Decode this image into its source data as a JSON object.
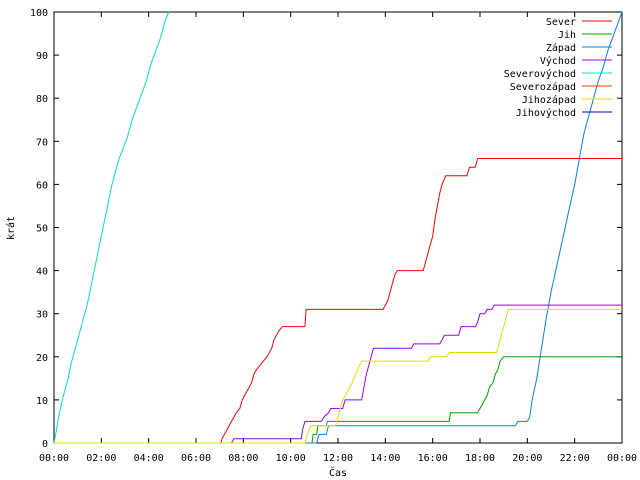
{
  "chart_data": {
    "type": "line",
    "title": "",
    "xlabel": "Čas",
    "ylabel": "krát",
    "x_unit": "hours",
    "xlim": [
      0,
      24
    ],
    "ylim": [
      0,
      100
    ],
    "x_ticks": [
      {
        "v": 0,
        "label": "00:00"
      },
      {
        "v": 2,
        "label": "02:00"
      },
      {
        "v": 4,
        "label": "04:00"
      },
      {
        "v": 6,
        "label": "06:00"
      },
      {
        "v": 8,
        "label": "08:00"
      },
      {
        "v": 10,
        "label": "10:00"
      },
      {
        "v": 12,
        "label": "12:00"
      },
      {
        "v": 14,
        "label": "14:00"
      },
      {
        "v": 16,
        "label": "16:00"
      },
      {
        "v": 18,
        "label": "18:00"
      },
      {
        "v": 20,
        "label": "20:00"
      },
      {
        "v": 22,
        "label": "22:00"
      },
      {
        "v": 24,
        "label": "00:00"
      }
    ],
    "y_ticks": [
      {
        "v": 0,
        "label": "0"
      },
      {
        "v": 10,
        "label": "10"
      },
      {
        "v": 20,
        "label": "20"
      },
      {
        "v": 30,
        "label": "30"
      },
      {
        "v": 40,
        "label": "40"
      },
      {
        "v": 50,
        "label": "50"
      },
      {
        "v": 60,
        "label": "60"
      },
      {
        "v": 70,
        "label": "70"
      },
      {
        "v": 80,
        "label": "80"
      },
      {
        "v": 90,
        "label": "90"
      },
      {
        "v": 100,
        "label": "100"
      }
    ],
    "grid": false,
    "legend_position": "top-right",
    "series": [
      {
        "name": "Sever",
        "color": "#ff0000",
        "points": [
          [
            0,
            0
          ],
          [
            7.05,
            0
          ],
          [
            7.1,
            1
          ],
          [
            7.2,
            2
          ],
          [
            7.3,
            3
          ],
          [
            7.4,
            4
          ],
          [
            7.5,
            5
          ],
          [
            7.6,
            6
          ],
          [
            7.7,
            7
          ],
          [
            7.85,
            8
          ],
          [
            7.95,
            10
          ],
          [
            8.05,
            11
          ],
          [
            8.15,
            12
          ],
          [
            8.25,
            13
          ],
          [
            8.35,
            14
          ],
          [
            8.45,
            16
          ],
          [
            8.55,
            17
          ],
          [
            8.7,
            18
          ],
          [
            8.85,
            19
          ],
          [
            9.0,
            20
          ],
          [
            9.1,
            21
          ],
          [
            9.2,
            22
          ],
          [
            9.3,
            24
          ],
          [
            9.4,
            25
          ],
          [
            9.5,
            26
          ],
          [
            9.65,
            27
          ],
          [
            10.6,
            27
          ],
          [
            10.65,
            31
          ],
          [
            13.9,
            31
          ],
          [
            14.0,
            32
          ],
          [
            14.1,
            33
          ],
          [
            14.2,
            35
          ],
          [
            14.3,
            37
          ],
          [
            14.4,
            39
          ],
          [
            14.5,
            40
          ],
          [
            15.6,
            40
          ],
          [
            15.7,
            42
          ],
          [
            15.85,
            45
          ],
          [
            16.0,
            48
          ],
          [
            16.1,
            52
          ],
          [
            16.2,
            55
          ],
          [
            16.3,
            58
          ],
          [
            16.4,
            60
          ],
          [
            16.55,
            62
          ],
          [
            17.45,
            62
          ],
          [
            17.55,
            64
          ],
          [
            17.8,
            64
          ],
          [
            17.9,
            66
          ],
          [
            24,
            66
          ]
        ]
      },
      {
        "name": "Jih",
        "color": "#00a000",
        "points": [
          [
            0,
            0
          ],
          [
            10.9,
            0
          ],
          [
            10.95,
            2
          ],
          [
            11.1,
            2
          ],
          [
            11.15,
            4
          ],
          [
            11.5,
            4
          ],
          [
            11.55,
            5
          ],
          [
            16.7,
            5
          ],
          [
            16.75,
            7
          ],
          [
            17.9,
            7
          ],
          [
            18.0,
            8
          ],
          [
            18.1,
            9
          ],
          [
            18.2,
            10
          ],
          [
            18.3,
            11
          ],
          [
            18.4,
            13
          ],
          [
            18.55,
            14
          ],
          [
            18.65,
            16
          ],
          [
            18.75,
            17
          ],
          [
            18.85,
            19
          ],
          [
            19.0,
            20
          ],
          [
            24,
            20
          ]
        ]
      },
      {
        "name": "Západ",
        "color": "#0080ff",
        "points": [
          [
            0,
            0
          ],
          [
            11.1,
            0
          ],
          [
            11.2,
            2
          ],
          [
            11.5,
            2
          ],
          [
            11.6,
            4
          ],
          [
            19.5,
            4
          ],
          [
            19.6,
            5
          ],
          [
            20.0,
            5
          ],
          [
            20.1,
            6
          ],
          [
            20.2,
            10
          ],
          [
            20.4,
            15
          ],
          [
            20.6,
            22
          ],
          [
            20.8,
            29
          ],
          [
            21.0,
            35
          ],
          [
            21.2,
            40
          ],
          [
            21.4,
            45
          ],
          [
            21.6,
            50
          ],
          [
            21.8,
            55
          ],
          [
            22.0,
            60
          ],
          [
            22.2,
            66
          ],
          [
            22.4,
            72
          ],
          [
            22.6,
            76
          ],
          [
            22.8,
            80
          ],
          [
            23.0,
            84
          ],
          [
            23.2,
            87
          ],
          [
            23.4,
            91
          ],
          [
            23.6,
            94
          ],
          [
            23.8,
            97
          ],
          [
            24,
            100
          ]
        ]
      },
      {
        "name": "Východ",
        "color": "#a000ff",
        "points": [
          [
            0,
            0
          ],
          [
            7.5,
            0
          ],
          [
            7.6,
            1
          ],
          [
            10.45,
            1
          ],
          [
            10.5,
            3
          ],
          [
            10.6,
            5
          ],
          [
            11.3,
            5
          ],
          [
            11.4,
            6
          ],
          [
            11.6,
            7
          ],
          [
            11.7,
            8
          ],
          [
            12.2,
            8
          ],
          [
            12.3,
            10
          ],
          [
            13.0,
            10
          ],
          [
            13.1,
            13
          ],
          [
            13.2,
            16
          ],
          [
            13.3,
            18
          ],
          [
            13.4,
            20
          ],
          [
            13.5,
            22
          ],
          [
            15.1,
            22
          ],
          [
            15.2,
            23
          ],
          [
            16.3,
            23
          ],
          [
            16.4,
            24
          ],
          [
            16.5,
            25
          ],
          [
            17.1,
            25
          ],
          [
            17.2,
            27
          ],
          [
            17.8,
            27
          ],
          [
            17.9,
            28
          ],
          [
            18.0,
            30
          ],
          [
            18.2,
            30
          ],
          [
            18.3,
            31
          ],
          [
            18.5,
            31
          ],
          [
            18.6,
            32
          ],
          [
            24,
            32
          ]
        ]
      },
      {
        "name": "Severovýchod",
        "color": "#00e0e0",
        "points": [
          [
            0,
            0
          ],
          [
            0.1,
            3
          ],
          [
            0.2,
            6
          ],
          [
            0.35,
            10
          ],
          [
            0.5,
            13
          ],
          [
            0.6,
            15
          ],
          [
            0.7,
            18
          ],
          [
            0.85,
            21
          ],
          [
            1.0,
            24
          ],
          [
            1.2,
            28
          ],
          [
            1.4,
            32
          ],
          [
            1.55,
            36
          ],
          [
            1.7,
            40
          ],
          [
            1.85,
            44
          ],
          [
            2.0,
            48
          ],
          [
            2.15,
            52
          ],
          [
            2.3,
            56
          ],
          [
            2.45,
            60
          ],
          [
            2.6,
            63
          ],
          [
            2.75,
            66
          ],
          [
            2.9,
            68
          ],
          [
            3.1,
            71
          ],
          [
            3.3,
            75
          ],
          [
            3.5,
            78
          ],
          [
            3.7,
            81
          ],
          [
            3.9,
            84
          ],
          [
            4.1,
            88
          ],
          [
            4.3,
            91
          ],
          [
            4.5,
            94
          ],
          [
            4.7,
            98
          ],
          [
            4.85,
            100
          ]
        ]
      },
      {
        "name": "Severozápad",
        "color": "#ff4000",
        "points": []
      },
      {
        "name": "Jihozápad",
        "color": "#e0e000",
        "points": [
          [
            0,
            0
          ],
          [
            10.6,
            0
          ],
          [
            10.7,
            2
          ],
          [
            10.85,
            4
          ],
          [
            11.9,
            4
          ],
          [
            12.0,
            6
          ],
          [
            12.1,
            8
          ],
          [
            12.2,
            10
          ],
          [
            12.4,
            12
          ],
          [
            12.6,
            14
          ],
          [
            12.75,
            16
          ],
          [
            12.9,
            18
          ],
          [
            13.0,
            19
          ],
          [
            15.8,
            19
          ],
          [
            15.9,
            20
          ],
          [
            16.6,
            20
          ],
          [
            16.7,
            21
          ],
          [
            18.7,
            21
          ],
          [
            18.8,
            23
          ],
          [
            18.9,
            25
          ],
          [
            19.0,
            27
          ],
          [
            19.1,
            29
          ],
          [
            19.2,
            31
          ],
          [
            24,
            31
          ]
        ]
      },
      {
        "name": "Jihovýchod",
        "color": "#0000c0",
        "points": []
      }
    ]
  }
}
